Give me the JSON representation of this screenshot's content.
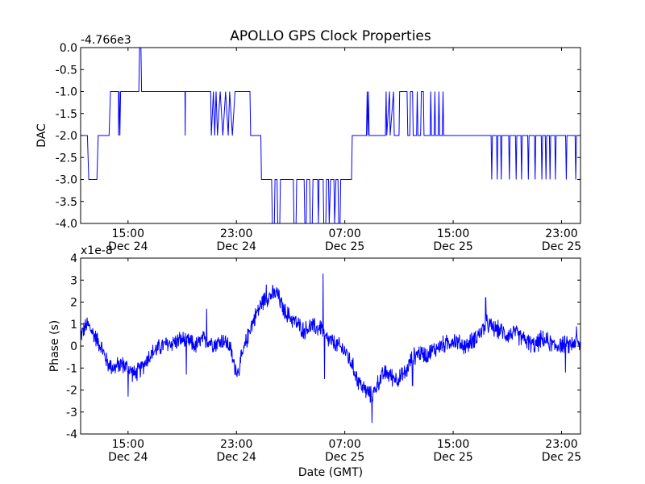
{
  "figure": {
    "title": "APOLLO GPS Clock Properties"
  },
  "chart_data": [
    {
      "type": "line",
      "title": "APOLLO GPS Clock Properties",
      "ylabel": "DAC",
      "xlabel": "",
      "offset_label": "-4.766e3",
      "x_unit": "hours since Dec 24 00:00 GMT",
      "xlim": [
        11.5,
        48.4
      ],
      "ylim": [
        -4.0,
        0.0
      ],
      "grid": false,
      "color": "#0000ff",
      "x_ticks": [
        {
          "x": 15,
          "time": "15:00",
          "date": "Dec 24"
        },
        {
          "x": 23,
          "time": "23:00",
          "date": "Dec 24"
        },
        {
          "x": 31,
          "time": "07:00",
          "date": "Dec 25"
        },
        {
          "x": 39,
          "time": "15:00",
          "date": "Dec 25"
        },
        {
          "x": 47,
          "time": "23:00",
          "date": "Dec 25"
        }
      ],
      "y_ticks": [
        "0.0",
        "-0.5",
        "-1.0",
        "-1.5",
        "-2.0",
        "-2.5",
        "-3.0",
        "-3.5",
        "-4.0"
      ],
      "y_tick_values": [
        0.0,
        -0.5,
        -1.0,
        -1.5,
        -2.0,
        -2.5,
        -3.0,
        -3.5,
        -4.0
      ],
      "series": [
        {
          "name": "DAC",
          "points": [
            [
              11.5,
              -2.0
            ],
            [
              12.0,
              -2.0
            ],
            [
              12.1,
              -3.0
            ],
            [
              12.7,
              -3.0
            ],
            [
              12.8,
              -2.0
            ],
            [
              13.6,
              -2.0
            ],
            [
              13.7,
              -1.0
            ],
            [
              14.3,
              -1.0
            ],
            [
              14.3,
              -2.0
            ],
            [
              14.35,
              -1.0
            ],
            [
              14.4,
              -2.0
            ],
            [
              14.45,
              -1.0
            ],
            [
              15.8,
              -1.0
            ],
            [
              15.85,
              0.0
            ],
            [
              15.95,
              0.0
            ],
            [
              16.0,
              -1.0
            ],
            [
              19.2,
              -1.0
            ],
            [
              19.22,
              -2.0
            ],
            [
              19.24,
              -1.0
            ],
            [
              21.1,
              -1.0
            ],
            [
              21.15,
              -2.0
            ],
            [
              21.3,
              -1.0
            ],
            [
              21.4,
              -2.0
            ],
            [
              21.5,
              -1.0
            ],
            [
              21.6,
              -2.0
            ],
            [
              21.8,
              -1.0
            ],
            [
              22.0,
              -2.0
            ],
            [
              22.2,
              -1.0
            ],
            [
              22.4,
              -2.0
            ],
            [
              22.5,
              -1.0
            ],
            [
              22.7,
              -2.0
            ],
            [
              22.9,
              -1.0
            ],
            [
              24.0,
              -1.0
            ],
            [
              24.05,
              -2.0
            ],
            [
              24.8,
              -2.0
            ],
            [
              24.85,
              -3.0
            ],
            [
              25.6,
              -3.0
            ],
            [
              25.65,
              -4.0
            ],
            [
              25.8,
              -4.0
            ],
            [
              25.85,
              -3.0
            ],
            [
              26.0,
              -3.0
            ],
            [
              26.05,
              -4.0
            ],
            [
              26.2,
              -4.0
            ],
            [
              26.25,
              -3.0
            ],
            [
              27.2,
              -3.0
            ],
            [
              27.25,
              -4.0
            ],
            [
              27.4,
              -4.0
            ],
            [
              27.45,
              -3.0
            ],
            [
              28.0,
              -3.0
            ],
            [
              28.05,
              -4.0
            ],
            [
              28.15,
              -4.0
            ],
            [
              28.2,
              -3.0
            ],
            [
              28.4,
              -3.0
            ],
            [
              28.45,
              -4.0
            ],
            [
              28.6,
              -4.0
            ],
            [
              28.65,
              -3.0
            ],
            [
              29.0,
              -3.0
            ],
            [
              29.05,
              -4.0
            ],
            [
              29.1,
              -3.0
            ],
            [
              29.4,
              -3.0
            ],
            [
              29.45,
              -4.0
            ],
            [
              29.6,
              -4.0
            ],
            [
              29.65,
              -3.0
            ],
            [
              29.8,
              -3.0
            ],
            [
              29.85,
              -4.0
            ],
            [
              29.95,
              -3.0
            ],
            [
              30.2,
              -3.0
            ],
            [
              30.25,
              -4.0
            ],
            [
              30.35,
              -3.0
            ],
            [
              30.5,
              -3.0
            ],
            [
              30.55,
              -4.0
            ],
            [
              30.65,
              -4.0
            ],
            [
              30.7,
              -3.0
            ],
            [
              31.5,
              -3.0
            ],
            [
              31.55,
              -2.0
            ],
            [
              32.6,
              -2.0
            ],
            [
              32.65,
              -1.0
            ],
            [
              32.7,
              -2.0
            ],
            [
              32.75,
              -1.0
            ],
            [
              32.8,
              -2.0
            ],
            [
              34.0,
              -2.0
            ],
            [
              34.05,
              -1.0
            ],
            [
              34.1,
              -2.0
            ],
            [
              34.3,
              -1.0
            ],
            [
              34.35,
              -2.0
            ],
            [
              34.6,
              -1.0
            ],
            [
              34.65,
              -2.0
            ],
            [
              35.0,
              -2.0
            ],
            [
              35.05,
              -1.0
            ],
            [
              35.6,
              -1.0
            ],
            [
              35.65,
              -2.0
            ],
            [
              35.8,
              -2.0
            ],
            [
              35.85,
              -1.0
            ],
            [
              36.0,
              -1.0
            ],
            [
              36.05,
              -2.0
            ],
            [
              36.3,
              -2.0
            ],
            [
              36.35,
              -1.0
            ],
            [
              36.4,
              -2.0
            ],
            [
              36.6,
              -2.0
            ],
            [
              36.65,
              -1.0
            ],
            [
              36.8,
              -1.0
            ],
            [
              36.85,
              -2.0
            ],
            [
              37.3,
              -2.0
            ],
            [
              37.35,
              -1.0
            ],
            [
              37.4,
              -2.0
            ],
            [
              37.6,
              -2.0
            ],
            [
              37.65,
              -1.0
            ],
            [
              37.7,
              -2.0
            ],
            [
              37.9,
              -2.0
            ],
            [
              37.95,
              -1.0
            ],
            [
              38.0,
              -2.0
            ],
            [
              38.2,
              -2.0
            ],
            [
              38.25,
              -1.0
            ],
            [
              38.3,
              -2.0
            ],
            [
              41.8,
              -2.0
            ],
            [
              41.85,
              -3.0
            ],
            [
              41.9,
              -2.0
            ],
            [
              42.2,
              -2.0
            ],
            [
              42.25,
              -3.0
            ],
            [
              42.3,
              -2.0
            ],
            [
              42.5,
              -2.0
            ],
            [
              42.55,
              -3.0
            ],
            [
              42.6,
              -2.0
            ],
            [
              43.1,
              -2.0
            ],
            [
              43.15,
              -3.0
            ],
            [
              43.2,
              -2.0
            ],
            [
              43.6,
              -2.0
            ],
            [
              43.65,
              -3.0
            ],
            [
              43.7,
              -2.0
            ],
            [
              44.0,
              -2.0
            ],
            [
              44.05,
              -3.0
            ],
            [
              44.1,
              -2.0
            ],
            [
              44.5,
              -2.0
            ],
            [
              44.55,
              -3.0
            ],
            [
              44.6,
              -2.0
            ],
            [
              45.0,
              -2.0
            ],
            [
              45.05,
              -3.0
            ],
            [
              45.1,
              -2.0
            ],
            [
              45.5,
              -2.0
            ],
            [
              45.55,
              -3.0
            ],
            [
              45.6,
              -2.0
            ],
            [
              45.8,
              -2.0
            ],
            [
              45.85,
              -3.0
            ],
            [
              45.9,
              -2.0
            ],
            [
              46.1,
              -2.0
            ],
            [
              46.15,
              -3.0
            ],
            [
              46.2,
              -2.0
            ],
            [
              46.5,
              -2.0
            ],
            [
              46.55,
              -3.0
            ],
            [
              46.6,
              -2.0
            ],
            [
              47.3,
              -2.0
            ],
            [
              47.35,
              -3.0
            ],
            [
              47.4,
              -2.0
            ],
            [
              48.0,
              -2.0
            ],
            [
              48.05,
              -3.0
            ],
            [
              48.1,
              -2.0
            ],
            [
              48.4,
              -2.0
            ]
          ]
        }
      ]
    },
    {
      "type": "line",
      "title": "",
      "ylabel": "Phase (s)",
      "xlabel": "Date (GMT)",
      "offset_label": "x1e-8",
      "x_unit": "hours since Dec 24 00:00 GMT",
      "xlim": [
        11.5,
        48.4
      ],
      "ylim": [
        -4,
        4
      ],
      "grid": false,
      "color": "#0000ff",
      "x_ticks": [
        {
          "x": 15,
          "time": "15:00",
          "date": "Dec 24"
        },
        {
          "x": 23,
          "time": "23:00",
          "date": "Dec 24"
        },
        {
          "x": 31,
          "time": "07:00",
          "date": "Dec 25"
        },
        {
          "x": 39,
          "time": "15:00",
          "date": "Dec 25"
        },
        {
          "x": 47,
          "time": "23:00",
          "date": "Dec 25"
        }
      ],
      "y_ticks": [
        "4",
        "3",
        "2",
        "1",
        "0",
        "-1",
        "-2",
        "-3",
        "-4"
      ],
      "y_tick_values": [
        4,
        3,
        2,
        1,
        0,
        -1,
        -2,
        -3,
        -4
      ],
      "noise_amplitude": 0.35,
      "series": [
        {
          "name": "Phase",
          "points": [
            [
              11.5,
              0.5
            ],
            [
              12.0,
              1.0
            ],
            [
              12.5,
              0.5
            ],
            [
              13.0,
              0.0
            ],
            [
              13.5,
              -0.8
            ],
            [
              14.0,
              -1.0
            ],
            [
              14.5,
              -0.8
            ],
            [
              15.0,
              -1.0
            ],
            [
              15.5,
              -1.3
            ],
            [
              16.0,
              -1.0
            ],
            [
              16.5,
              -0.5
            ],
            [
              17.0,
              -0.2
            ],
            [
              17.5,
              0.0
            ],
            [
              18.0,
              0.1
            ],
            [
              18.5,
              0.2
            ],
            [
              19.0,
              0.3
            ],
            [
              19.5,
              0.2
            ],
            [
              20.0,
              0.0
            ],
            [
              20.5,
              0.3
            ],
            [
              21.0,
              0.2
            ],
            [
              21.5,
              0.1
            ],
            [
              22.0,
              0.3
            ],
            [
              22.5,
              0.0
            ],
            [
              22.8,
              -0.8
            ],
            [
              23.1,
              -1.2
            ],
            [
              23.5,
              -0.3
            ],
            [
              24.0,
              0.8
            ],
            [
              24.5,
              1.5
            ],
            [
              25.0,
              2.1
            ],
            [
              25.5,
              2.3
            ],
            [
              26.0,
              2.4
            ],
            [
              26.5,
              1.6
            ],
            [
              27.0,
              1.3
            ],
            [
              27.5,
              1.0
            ],
            [
              28.0,
              0.7
            ],
            [
              28.5,
              0.9
            ],
            [
              29.0,
              0.8
            ],
            [
              29.3,
              0.9
            ],
            [
              29.5,
              0.4
            ],
            [
              30.0,
              0.2
            ],
            [
              30.5,
              0.0
            ],
            [
              31.0,
              -0.2
            ],
            [
              31.5,
              -0.8
            ],
            [
              32.0,
              -1.6
            ],
            [
              32.5,
              -2.0
            ],
            [
              33.0,
              -2.3
            ],
            [
              33.5,
              -1.6
            ],
            [
              34.0,
              -1.2
            ],
            [
              34.5,
              -1.4
            ],
            [
              35.0,
              -1.5
            ],
            [
              35.5,
              -1.2
            ],
            [
              36.0,
              -0.5
            ],
            [
              36.5,
              -0.3
            ],
            [
              37.0,
              -0.4
            ],
            [
              37.5,
              -0.2
            ],
            [
              38.0,
              0.0
            ],
            [
              38.5,
              0.1
            ],
            [
              39.0,
              0.3
            ],
            [
              39.5,
              0.1
            ],
            [
              40.0,
              0.0
            ],
            [
              40.5,
              0.3
            ],
            [
              41.0,
              0.6
            ],
            [
              41.5,
              1.0
            ],
            [
              42.0,
              0.8
            ],
            [
              42.5,
              0.7
            ],
            [
              43.0,
              0.5
            ],
            [
              43.5,
              0.6
            ],
            [
              44.0,
              0.4
            ],
            [
              44.5,
              0.2
            ],
            [
              45.0,
              0.0
            ],
            [
              45.5,
              0.3
            ],
            [
              46.0,
              0.2
            ],
            [
              46.5,
              0.0
            ],
            [
              47.0,
              0.1
            ],
            [
              47.5,
              0.0
            ],
            [
              48.0,
              0.2
            ],
            [
              48.4,
              0.0
            ]
          ]
        }
      ],
      "spikes": [
        {
          "x": 15.0,
          "y": -2.3
        },
        {
          "x": 19.3,
          "y": -1.3
        },
        {
          "x": 20.8,
          "y": 1.7
        },
        {
          "x": 25.2,
          "y": 2.8
        },
        {
          "x": 29.4,
          "y": 3.3
        },
        {
          "x": 29.5,
          "y": -1.5
        },
        {
          "x": 33.0,
          "y": -3.5
        },
        {
          "x": 36.0,
          "y": -1.8
        },
        {
          "x": 41.4,
          "y": 2.2
        },
        {
          "x": 47.3,
          "y": -1.2
        },
        {
          "x": 48.1,
          "y": 0.9
        }
      ]
    }
  ]
}
